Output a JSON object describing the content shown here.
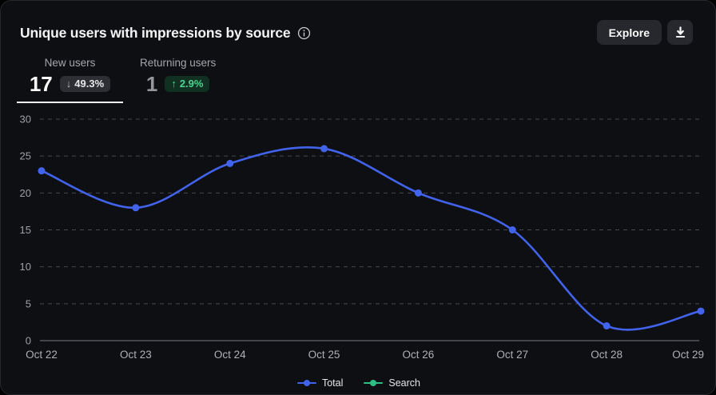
{
  "header": {
    "title": "Unique users with impressions by source",
    "explore_label": "Explore"
  },
  "metrics": [
    {
      "label": "New users",
      "value": "17",
      "arrow": "↓",
      "delta": "49.3%",
      "trend": "down",
      "active": true
    },
    {
      "label": "Returning users",
      "value": "1",
      "arrow": "↑",
      "delta": "2.9%",
      "trend": "up",
      "active": false
    }
  ],
  "chart_data": {
    "type": "line",
    "title": "Unique users with impressions by source",
    "categories": [
      "Oct 22",
      "Oct 23",
      "Oct 24",
      "Oct 25",
      "Oct 26",
      "Oct 27",
      "Oct 28",
      "Oct 29"
    ],
    "series": [
      {
        "name": "Total",
        "color": "#4263eb",
        "values": [
          23,
          18,
          24,
          26,
          20,
          15,
          2,
          4
        ]
      }
    ],
    "legend": [
      {
        "label": "Total",
        "color": "#4263eb"
      },
      {
        "label": "Search",
        "color": "#2ebd85"
      }
    ],
    "xlabel": "",
    "ylabel": "",
    "ylim": [
      0,
      30
    ],
    "yticks": [
      0,
      5,
      10,
      15,
      20,
      25,
      30
    ],
    "grid": "dashed-horizontal",
    "legend_position": "bottom-center"
  },
  "colors": {
    "card_bg": "#0e0f13",
    "card_border": "#26272c",
    "accent_blue": "#4263eb",
    "accent_green": "#2ebd85",
    "grid_line": "#46474d",
    "axis_line": "#7a7b80",
    "badge_down_bg": "#2e2f34",
    "badge_up_bg": "#103022",
    "badge_up_text": "#4fd493",
    "text_primary": "#fafafa",
    "text_secondary": "#a5a6ac"
  }
}
